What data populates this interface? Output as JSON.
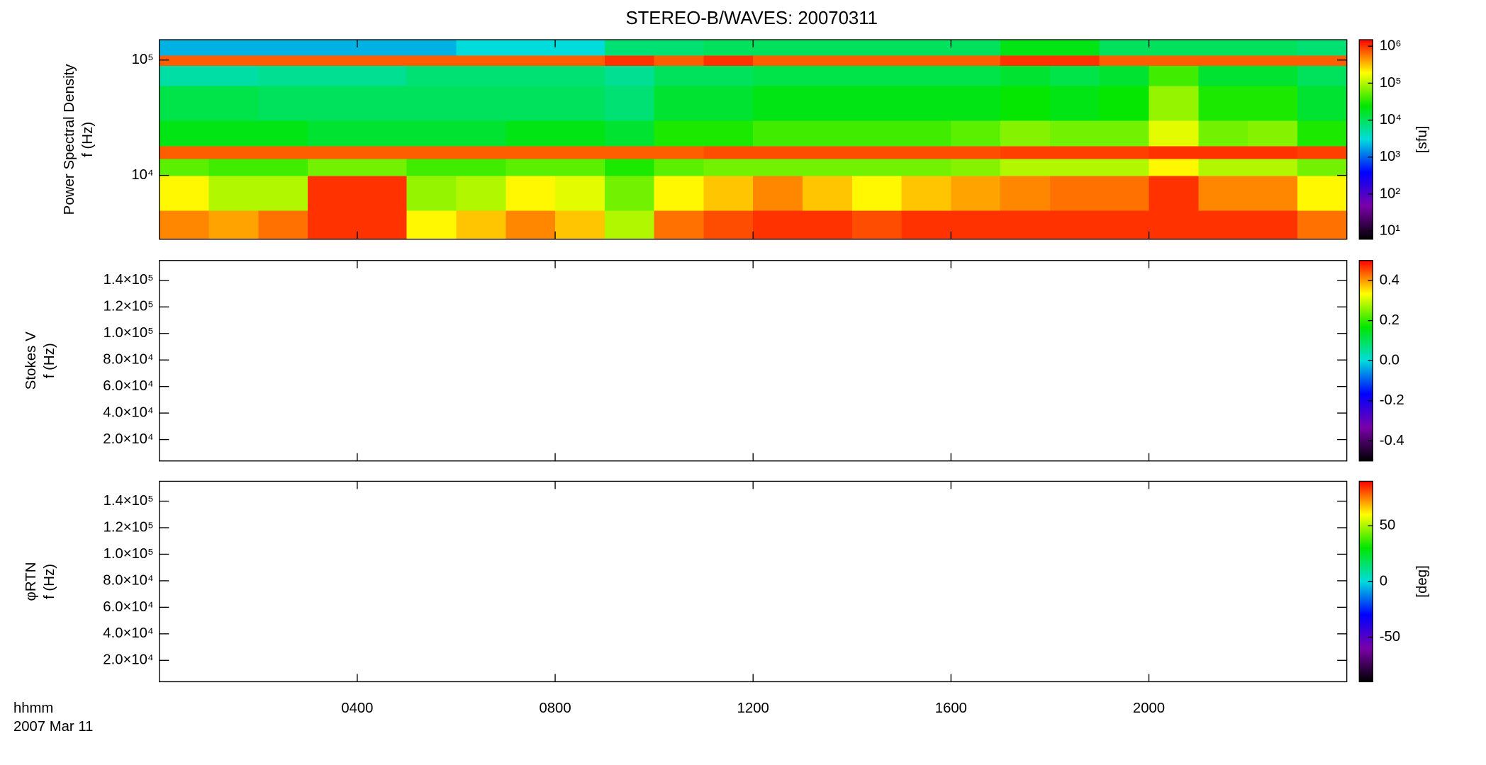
{
  "title": "STEREO-B/WAVES: 20070311",
  "x_label": [
    "hhmm",
    "2007 Mar 11"
  ],
  "chart_data": [
    {
      "type": "heatmap",
      "ylabel": [
        "Power Spectral Density",
        "f (Hz)"
      ],
      "ylog": true,
      "xlim": [
        0,
        24
      ],
      "xticks": [
        4,
        8,
        12,
        16,
        20
      ],
      "ylim": [
        2800,
        150000
      ],
      "yticks": [
        {
          "value": 10000,
          "label": "10⁴"
        },
        {
          "value": 100000,
          "label": "10⁵"
        }
      ],
      "x_edges": [
        0,
        1,
        2,
        3,
        4,
        5,
        6,
        7,
        8,
        9,
        10,
        11,
        12,
        13,
        14,
        15,
        16,
        17,
        18,
        19,
        20,
        21,
        22,
        23,
        24
      ],
      "y_edges": [
        2800,
        5000,
        10000,
        14000,
        18000,
        30000,
        60000,
        90000,
        110000,
        150000
      ],
      "z": [
        [
          500000,
          400000,
          600000,
          1000000,
          1000000,
          200000,
          300000,
          500000,
          300000,
          100000,
          600000,
          800000,
          1000000,
          1000000,
          800000,
          1000000,
          1000000,
          1000000,
          1000000,
          1000000,
          1000000,
          1000000,
          1000000,
          600000
        ],
        [
          200000,
          100000,
          100000,
          1000000,
          1000000,
          80000,
          100000,
          200000,
          150000,
          60000,
          200000,
          300000,
          500000,
          300000,
          200000,
          300000,
          400000,
          500000,
          600000,
          600000,
          1000000,
          500000,
          500000,
          200000
        ],
        [
          50000,
          40000,
          40000,
          60000,
          60000,
          40000,
          40000,
          50000,
          50000,
          30000,
          50000,
          60000,
          60000,
          60000,
          60000,
          60000,
          70000,
          100000,
          100000,
          100000,
          200000,
          100000,
          100000,
          60000
        ],
        [
          700000,
          700000,
          700000,
          700000,
          700000,
          700000,
          700000,
          700000,
          700000,
          700000,
          700000,
          800000,
          800000,
          800000,
          800000,
          800000,
          800000,
          900000,
          900000,
          900000,
          1000000,
          1000000,
          1000000,
          900000
        ],
        [
          20000,
          20000,
          20000,
          15000,
          15000,
          15000,
          15000,
          20000,
          20000,
          15000,
          30000,
          30000,
          40000,
          40000,
          40000,
          40000,
          50000,
          70000,
          60000,
          60000,
          150000,
          60000,
          70000,
          30000
        ],
        [
          12000,
          12000,
          10000,
          10000,
          10000,
          10000,
          10000,
          10000,
          10000,
          8000,
          15000,
          15000,
          20000,
          20000,
          20000,
          20000,
          20000,
          25000,
          20000,
          25000,
          80000,
          30000,
          30000,
          15000
        ],
        [
          5000,
          5000,
          6000,
          6000,
          6000,
          8000,
          8000,
          8000,
          8000,
          6000,
          10000,
          10000,
          12000,
          12000,
          12000,
          12000,
          12000,
          15000,
          12000,
          15000,
          40000,
          15000,
          15000,
          10000
        ],
        [
          700000,
          700000,
          700000,
          700000,
          700000,
          700000,
          700000,
          700000,
          700000,
          1000000,
          700000,
          1000000,
          700000,
          700000,
          700000,
          700000,
          700000,
          1000000,
          1000000,
          700000,
          700000,
          700000,
          700000,
          700000
        ],
        [
          2000,
          2000,
          2000,
          2000,
          2000,
          2000,
          3000,
          3000,
          3000,
          8000,
          8000,
          10000,
          10000,
          10000,
          10000,
          10000,
          10000,
          20000,
          20000,
          10000,
          10000,
          10000,
          10000,
          8000
        ]
      ],
      "zlog": true,
      "zlim": [
        6,
        1500000
      ],
      "zticks": [
        {
          "value": 10,
          "label": "10¹"
        },
        {
          "value": 100,
          "label": "10²"
        },
        {
          "value": 1000,
          "label": "10³"
        },
        {
          "value": 10000,
          "label": "10⁴"
        },
        {
          "value": 100000,
          "label": "10⁵"
        },
        {
          "value": 1000000,
          "label": "10⁶"
        }
      ],
      "zlabel": "[sfu]",
      "colormap": [
        "#000000",
        "#7a00aa",
        "#0000ff",
        "#00dcdc",
        "#00e600",
        "#ffff00",
        "#ff0000"
      ]
    },
    {
      "type": "heatmap",
      "ylabel": [
        "Stokes V",
        "f (Hz)"
      ],
      "ylog": false,
      "xlim": [
        0,
        24
      ],
      "xticks": [
        4,
        8,
        12,
        16,
        20
      ],
      "ylim": [
        3900,
        155000
      ],
      "yticks": [
        {
          "value": 20000,
          "label": "2.0×10⁴"
        },
        {
          "value": 40000,
          "label": "4.0×10⁴"
        },
        {
          "value": 60000,
          "label": "6.0×10⁴"
        },
        {
          "value": 80000,
          "label": "8.0×10⁴"
        },
        {
          "value": 100000,
          "label": "1.0×10⁵"
        },
        {
          "value": 120000,
          "label": "1.2×10⁵"
        },
        {
          "value": 140000,
          "label": "1.4×10⁵"
        }
      ],
      "zlog": false,
      "zlim": [
        -0.5,
        0.5
      ],
      "zticks": [
        -0.4,
        -0.2,
        {
          "value": 0,
          "label": "0.0"
        },
        0.2,
        0.4
      ],
      "colormap": [
        "#000000",
        "#7a00aa",
        "#0000ff",
        "#00dcdc",
        "#00e600",
        "#ffff00",
        "#ff0000"
      ]
    },
    {
      "type": "heatmap",
      "ylabel": [
        "φRTN",
        "f (Hz)"
      ],
      "ylog": false,
      "xlim": [
        0,
        24
      ],
      "xticks": [
        {
          "value": 4,
          "label": "0400"
        },
        {
          "value": 8,
          "label": "0800"
        },
        {
          "value": 12,
          "label": "1200"
        },
        {
          "value": 16,
          "label": "1600"
        },
        {
          "value": 20,
          "label": "2000"
        }
      ],
      "ylim": [
        3900,
        155000
      ],
      "yticks": [
        {
          "value": 20000,
          "label": "2.0×10⁴"
        },
        {
          "value": 40000,
          "label": "4.0×10⁴"
        },
        {
          "value": 60000,
          "label": "6.0×10⁴"
        },
        {
          "value": 80000,
          "label": "8.0×10⁴"
        },
        {
          "value": 100000,
          "label": "1.0×10⁵"
        },
        {
          "value": 120000,
          "label": "1.2×10⁵"
        },
        {
          "value": 140000,
          "label": "1.4×10⁵"
        }
      ],
      "zlog": false,
      "zlim": [
        -90,
        90
      ],
      "zticks": [
        -50,
        0,
        50
      ],
      "zlabel": "[deg]",
      "colormap": [
        "#000000",
        "#7a00aa",
        "#0000ff",
        "#00dcdc",
        "#00e600",
        "#ffff00",
        "#ff0000"
      ]
    }
  ]
}
